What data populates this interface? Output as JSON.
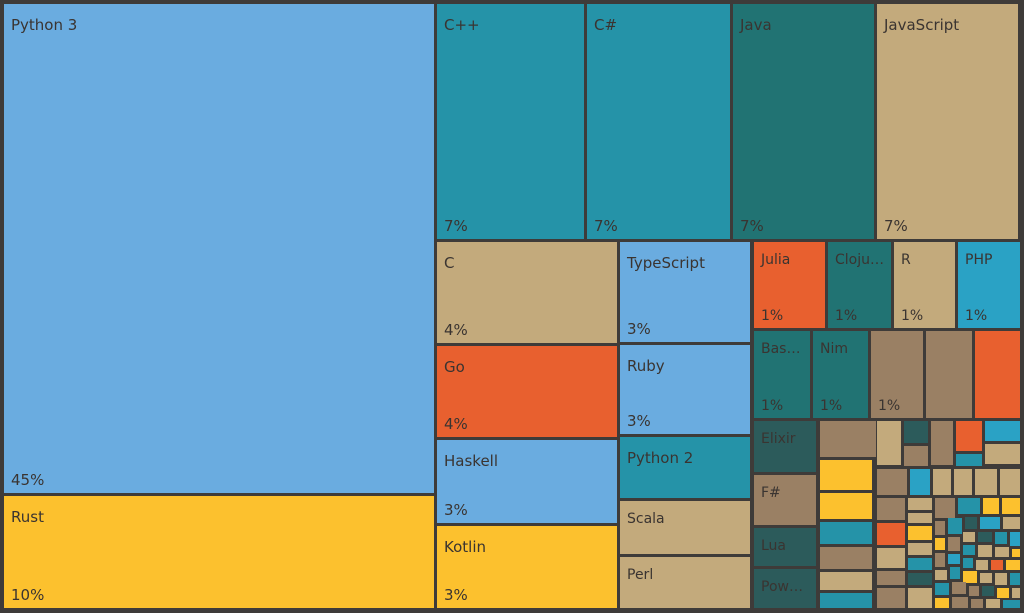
{
  "chart_data": {
    "type": "treemap",
    "colors": {
      "background": "#3e3b39",
      "text": "#3a3431",
      "light_blue": "#6aace0",
      "teal": "#2593a8",
      "dark_teal": "#217373",
      "tan": "#c3aa7c",
      "yellow": "#fcc12e",
      "orange": "#e8602f",
      "bright_blue": "#2aa2c5",
      "brown": "#9a8064",
      "dark_slate": "#2c5b5b"
    },
    "labeled": [
      {
        "name": "Python 3",
        "value_label": "45%",
        "color": "light_blue"
      },
      {
        "name": "Rust",
        "value_label": "10%",
        "color": "yellow"
      },
      {
        "name": "C++",
        "value_label": "7%",
        "color": "teal"
      },
      {
        "name": "C#",
        "value_label": "7%",
        "color": "teal"
      },
      {
        "name": "Java",
        "value_label": "7%",
        "color": "dark_teal"
      },
      {
        "name": "JavaScript",
        "value_label": "7%",
        "color": "tan"
      },
      {
        "name": "C",
        "value_label": "4%",
        "color": "tan"
      },
      {
        "name": "Go",
        "value_label": "4%",
        "color": "orange"
      },
      {
        "name": "Haskell",
        "value_label": "3%",
        "color": "light_blue"
      },
      {
        "name": "Kotlin",
        "value_label": "3%",
        "color": "yellow"
      },
      {
        "name": "TypeScript",
        "value_label": "3%",
        "color": "light_blue"
      },
      {
        "name": "Ruby",
        "value_label": "3%",
        "color": "light_blue"
      },
      {
        "name": "Python 2",
        "value_label": "",
        "color": "teal"
      },
      {
        "name": "Scala",
        "value_label": "",
        "color": "tan"
      },
      {
        "name": "Perl",
        "value_label": "",
        "color": "tan"
      },
      {
        "name": "Julia",
        "value_label": "1%",
        "color": "orange"
      },
      {
        "name": "Cloju…",
        "value_label": "1%",
        "color": "dark_teal"
      },
      {
        "name": "R",
        "value_label": "1%",
        "color": "tan"
      },
      {
        "name": "PHP",
        "value_label": "1%",
        "color": "bright_blue"
      },
      {
        "name": "Bas…",
        "value_label": "1%",
        "color": "dark_teal"
      },
      {
        "name": "Nim",
        "value_label": "1%",
        "color": "dark_teal"
      },
      {
        "name": "",
        "value_label": "1%",
        "color": "brown"
      },
      {
        "name": "",
        "value_label": "",
        "color": "brown"
      },
      {
        "name": "",
        "value_label": "",
        "color": "orange"
      },
      {
        "name": "Elixir",
        "value_label": "",
        "color": "dark_slate"
      },
      {
        "name": "F#",
        "value_label": "",
        "color": "brown"
      },
      {
        "name": "Lua",
        "value_label": "",
        "color": "dark_slate"
      },
      {
        "name": "Pow…",
        "value_label": "",
        "color": "dark_slate"
      }
    ],
    "unlabeled_tile_colors": [
      "brown",
      "tan",
      "dark_slate",
      "brown",
      "orange",
      "bright_blue",
      "brown",
      "tan",
      "teal",
      "yellow",
      "brown",
      "bright_blue",
      "tan",
      "tan",
      "tan",
      "tan",
      "yellow",
      "brown",
      "tan",
      "brown",
      "teal",
      "yellow",
      "yellow",
      "tan",
      "brown",
      "teal",
      "dark_slate",
      "bright_blue",
      "tan",
      "teal",
      "orange",
      "yellow",
      "brown",
      "tan",
      "dark_slate",
      "teal",
      "bright_blue",
      "tan",
      "yellow",
      "brown",
      "tan",
      "teal",
      "tan",
      "bright_blue",
      "tan",
      "yellow",
      "teal",
      "brown",
      "teal",
      "tan",
      "orange",
      "yellow",
      "tan",
      "brown",
      "dark_slate",
      "tan",
      "teal",
      "yellow",
      "tan",
      "tan",
      "teal",
      "brown",
      "tan",
      "teal",
      "brown",
      "brown",
      "dark_slate",
      "yellow",
      "tan",
      "teal",
      "yellow",
      "brown",
      "brown",
      "tan",
      "teal"
    ]
  }
}
